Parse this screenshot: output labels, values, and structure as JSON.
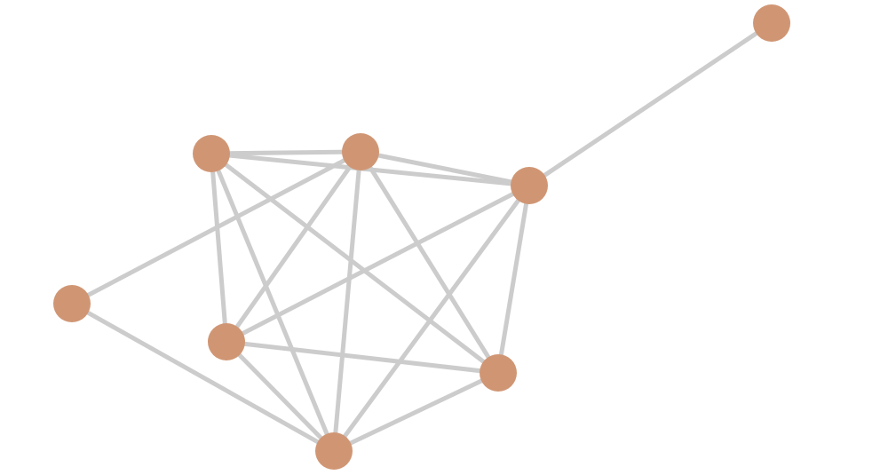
{
  "graph": {
    "node_color": "#d09674",
    "edge_color": "#cccccc",
    "nodes": [
      "n0",
      "n1",
      "n2",
      "n3",
      "n4",
      "n5",
      "n6",
      "n7"
    ],
    "edges": [
      [
        "n3",
        "n0"
      ],
      [
        "n1",
        "n2"
      ],
      [
        "n1",
        "n3"
      ],
      [
        "n2",
        "n3"
      ],
      [
        "n2",
        "n4"
      ],
      [
        "n1",
        "n5"
      ],
      [
        "n1",
        "n7"
      ],
      [
        "n1",
        "n6"
      ],
      [
        "n2",
        "n5"
      ],
      [
        "n2",
        "n7"
      ],
      [
        "n2",
        "n6"
      ],
      [
        "n3",
        "n5"
      ],
      [
        "n3",
        "n7"
      ],
      [
        "n3",
        "n6"
      ],
      [
        "n4",
        "n7"
      ],
      [
        "n5",
        "n6"
      ],
      [
        "n5",
        "n7"
      ],
      [
        "n6",
        "n7"
      ]
    ]
  }
}
